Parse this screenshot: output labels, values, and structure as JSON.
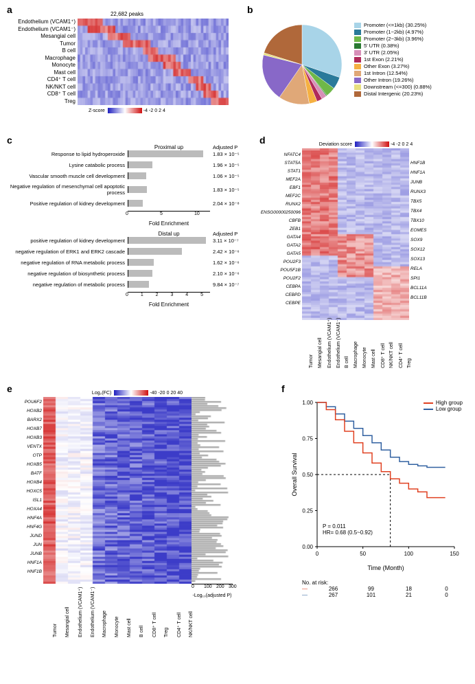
{
  "panel_a": {
    "label": "a",
    "title": "22,682 peaks",
    "row_labels": [
      "Endothelium (VCAM1⁺)",
      "Endothelium (VCAM1⁻)",
      "Mesangial cell",
      "Tumor",
      "B cell",
      "Macrophage",
      "Monocyte",
      "Mast cell",
      "CD4⁺ T cell",
      "NK/NKT cell",
      "CD8⁺ T cell",
      "Treg"
    ],
    "heatmap_rows": 12,
    "heatmap_cols": 60,
    "colorbar_label": "Z-score",
    "colorbar_ticks": [
      "-4",
      "-2",
      "0",
      "2",
      "4"
    ]
  },
  "panel_b": {
    "label": "b",
    "slices": [
      {
        "label": "Promoter (<=1kb) (30.25%)",
        "value": 30.25,
        "color": "#a8d4e8"
      },
      {
        "label": "Promoter (1−2kb) (4.97%)",
        "value": 4.97,
        "color": "#2a7a9a"
      },
      {
        "label": "Promoter (2−3kb) (3.96%)",
        "value": 3.96,
        "color": "#6fb848"
      },
      {
        "label": "5' UTR (0.38%)",
        "value": 0.38,
        "color": "#2a7a32"
      },
      {
        "label": "3' UTR (2.05%)",
        "value": 2.05,
        "color": "#d88fb8"
      },
      {
        "label": "1st Exon (2.21%)",
        "value": 2.21,
        "color": "#b02a5a"
      },
      {
        "label": "Other Exon (3.27%)",
        "value": 3.27,
        "color": "#f5b042"
      },
      {
        "label": "1st Intron (12.54%)",
        "value": 12.54,
        "color": "#e0a878"
      },
      {
        "label": "Other Intron (19.26%)",
        "value": 19.26,
        "color": "#8868c8"
      },
      {
        "label": "Downstream (<=300) (0.88%)",
        "value": 0.88,
        "color": "#e8e080"
      },
      {
        "label": "Distal Intergenic (20.23%)",
        "value": 20.23,
        "color": "#b0683a"
      }
    ]
  },
  "panel_c": {
    "label": "c",
    "upper_title": "Proximal up",
    "upper_pval_header": "Adjusted P",
    "upper_xlabel": "Fold Enrichment",
    "upper_xmax": 12,
    "upper_xticks": [
      0,
      5,
      10
    ],
    "upper_rows": [
      {
        "label": "Response to lipid hydroperoxide",
        "fold": 11.0,
        "pval": "1.83 × 10⁻⁵"
      },
      {
        "label": "Lysine catabolic process",
        "fold": 3.5,
        "pval": "1.96 × 10⁻⁵"
      },
      {
        "label": "Vascular smooth muscle cell development",
        "fold": 2.6,
        "pval": "1.06 × 10⁻⁵"
      },
      {
        "label": "Negative regulation of mesenchymal cell apoptotic process",
        "fold": 2.7,
        "pval": "1.83 × 10⁻⁵"
      },
      {
        "label": "Positive regulation of kidney development",
        "fold": 2.1,
        "pval": "2.04 × 10⁻⁸"
      }
    ],
    "lower_title": "Distal up",
    "lower_pval_header": "Adjusted P",
    "lower_xlabel": "Fold Enrichment",
    "lower_xmax": 5.5,
    "lower_xticks": [
      0,
      1,
      2,
      3,
      4,
      5
    ],
    "lower_rows": [
      {
        "label": "positive regulation of kidney development",
        "fold": 5.2,
        "pval": "3.11 × 10⁻⁷"
      },
      {
        "label": "negative regulation of ERK1 and ERK2 cascade",
        "fold": 3.6,
        "pval": "2.42 × 10⁻⁶"
      },
      {
        "label": "negative regulation of RNA metabolic process",
        "fold": 1.7,
        "pval": "1.62 × 10⁻⁶"
      },
      {
        "label": "negative regulation of biosynthetic process",
        "fold": 1.6,
        "pval": "2.10 × 10⁻⁶"
      },
      {
        "label": "negative regulation of metabolic process",
        "fold": 1.4,
        "pval": "9.84 × 10⁻⁷"
      }
    ]
  },
  "panel_d": {
    "label": "d",
    "colorbar_label": "Deviation score",
    "colorbar_ticks": [
      "-4",
      "-2",
      "0",
      "2",
      "4"
    ],
    "col_labels": [
      "Tumor",
      "Mesangial cell",
      "Endothelium (VCAM1⁺)",
      "Endothelium (VCAM1⁻)",
      "B cell",
      "Macrophage",
      "Monocyte",
      "Mast cell",
      "CD8⁺ T cell",
      "NK/NKT cell",
      "CD4⁺ T cell",
      "Treg"
    ],
    "left_callouts": [
      "NFATC4",
      "STAT5A",
      "STAT1",
      "MEF2A",
      "EBF1",
      "MEF2C",
      "RUNX2",
      "ENSG00000250096",
      "CBFB",
      "ZEB1",
      "GATA4",
      "GATA2",
      "GATA5",
      "POU2F3",
      "POU5F1B",
      "POU2F2",
      "CEBPA",
      "CEBPD",
      "CEBPE"
    ],
    "right_callouts": [
      "HNF1B",
      "HNF1A",
      "JUNB",
      "RUNX3",
      "TBX5",
      "TBX4",
      "TBX10",
      "EOMES",
      "SOX9",
      "SOX12",
      "SOX13",
      "RELA",
      "SPI1",
      "BCL11A",
      "BCL11B"
    ]
  },
  "panel_e": {
    "label": "e",
    "colorbar_label": "Log₂(FC)",
    "colorbar_ticks": [
      "-40",
      "-20",
      "0",
      "20",
      "40"
    ],
    "col_labels": [
      "Tumor",
      "Mesangial cell",
      "Endothelium (VCAM1⁺)",
      "Endothelium (VCAM1⁻)",
      "Macrophage",
      "Monocyte",
      "Mast cell",
      "B cell",
      "CD8⁺ T cell",
      "Treg",
      "CD4⁺ T cell",
      "NK/NKT cell"
    ],
    "left_callouts": [
      "POU6F2",
      "HOXB2",
      "BARX2",
      "HOXB7",
      "HOXB3",
      "VENTX",
      "OTP",
      "HOXB5",
      "BATF",
      "HOXB4",
      "HOXC5",
      "ISL1",
      "HOXA4",
      "HNF4A",
      "HNF4G",
      "JUND",
      "JUN",
      "JUNB",
      "HNF1A",
      "HNF1B"
    ],
    "side_axis_label": "-Log₁₀(adjusted P)",
    "side_axis_ticks": [
      "0",
      "100",
      "200",
      "300"
    ]
  },
  "panel_f": {
    "label": "f",
    "ylabel": "Overall Survival",
    "xlabel": "Time (Month)",
    "legend": [
      {
        "label": "High group",
        "color": "#e04020"
      },
      {
        "label": "Low group",
        "color": "#3060a0"
      }
    ],
    "stats_p": "P = 0.011",
    "stats_hr": "HR= 0.68 (0.5~0.92)",
    "ylim": [
      0,
      1.0
    ],
    "yticks": [
      "0.00",
      "0.25",
      "0.50",
      "0.75",
      "1.00"
    ],
    "xlim": [
      0,
      150
    ],
    "xticks": [
      "0",
      "50",
      "100",
      "150"
    ],
    "risk_header": "No. at risk:",
    "risk_rows": [
      {
        "color": "#e04020",
        "values": [
          "266",
          "99",
          "18",
          "0"
        ]
      },
      {
        "color": "#3060a0",
        "values": [
          "267",
          "101",
          "21",
          "0"
        ]
      }
    ],
    "high_curve": [
      [
        0,
        1.0
      ],
      [
        10,
        0.95
      ],
      [
        20,
        0.88
      ],
      [
        30,
        0.8
      ],
      [
        40,
        0.72
      ],
      [
        50,
        0.65
      ],
      [
        60,
        0.58
      ],
      [
        70,
        0.52
      ],
      [
        80,
        0.47
      ],
      [
        90,
        0.44
      ],
      [
        100,
        0.4
      ],
      [
        110,
        0.38
      ],
      [
        120,
        0.34
      ],
      [
        140,
        0.34
      ]
    ],
    "low_curve": [
      [
        0,
        1.0
      ],
      [
        10,
        0.97
      ],
      [
        20,
        0.92
      ],
      [
        30,
        0.87
      ],
      [
        40,
        0.82
      ],
      [
        50,
        0.77
      ],
      [
        60,
        0.72
      ],
      [
        70,
        0.67
      ],
      [
        80,
        0.62
      ],
      [
        90,
        0.59
      ],
      [
        100,
        0.57
      ],
      [
        110,
        0.56
      ],
      [
        120,
        0.55
      ],
      [
        140,
        0.55
      ]
    ]
  }
}
